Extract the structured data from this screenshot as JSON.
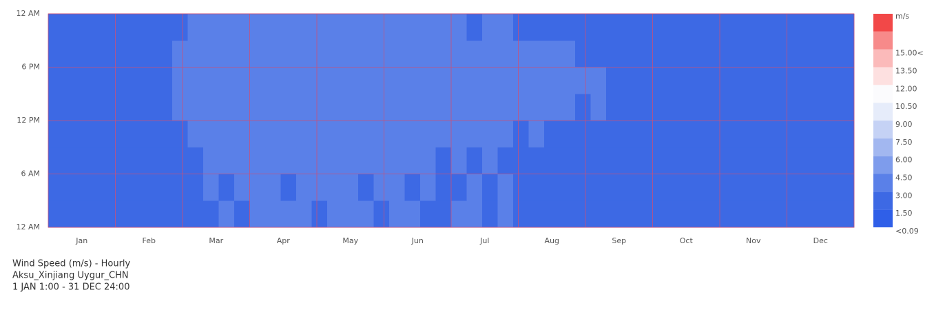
{
  "chart_data": {
    "type": "heatmap",
    "title": "Wind Speed (m/s) - Hourly",
    "subtitle": "Aksu_Xinjiang Uygur_CHN",
    "period": "1 JAN 1:00 - 31 DEC 24:00",
    "categories": [
      "Jan",
      "Feb",
      "Mar",
      "Apr",
      "May",
      "Jun",
      "Jul",
      "Aug",
      "Sep",
      "Oct",
      "Nov",
      "Dec"
    ],
    "ylim": [
      0,
      24
    ],
    "yticks": [
      {
        "value": 0,
        "label": "12 AM"
      },
      {
        "value": 6,
        "label": "6 AM"
      },
      {
        "value": 12,
        "label": "12 PM"
      },
      {
        "value": 18,
        "label": "6 PM"
      },
      {
        "value": 24,
        "label": "12 AM"
      }
    ],
    "grid_color": "#c8507a",
    "color_unit": "m/s",
    "above_color": "#f24848",
    "colorscale": [
      {
        "value": 0.09,
        "label": "<0.09",
        "color": "#2f5fe8"
      },
      {
        "value": 1.5,
        "label": "1.50",
        "color": "#3d69e4"
      },
      {
        "value": 3,
        "label": "3.00",
        "color": "#5a80e8"
      },
      {
        "value": 4.5,
        "label": "4.50",
        "color": "#7e9cec"
      },
      {
        "value": 6,
        "label": "6.00",
        "color": "#a2b7f0"
      },
      {
        "value": 7.5,
        "label": "7.50",
        "color": "#c5d2f5"
      },
      {
        "value": 9,
        "label": "9.00",
        "color": "#e6ecfa"
      },
      {
        "value": 10.5,
        "label": "10.50",
        "color": "#fbfbfd"
      },
      {
        "value": 12,
        "label": "12.00",
        "color": "#fde0e0"
      },
      {
        "value": 13.5,
        "label": "13.50",
        "color": "#fbbaba"
      },
      {
        "value": 15,
        "label": "15.00<",
        "color": "#f78a8a"
      }
    ],
    "z": [
      [
        2.0,
        2.1,
        1.9,
        2.2,
        2.0,
        2.1,
        2.3,
        2.0,
        2.2,
        2.6,
        2.9,
        3.2,
        2.8,
        3.4,
        3.1,
        3.0,
        3.3,
        2.9,
        3.5,
        3.2,
        3.0,
        2.8,
        3.1,
        3.3,
        2.9,
        2.7,
        3.0,
        3.2,
        2.8,
        3.1,
        2.9,
        2.6,
        2.8,
        2.5,
        2.7,
        2.4,
        2.3,
        2.2,
        2.5,
        2.1,
        2.0,
        2.2,
        2.1,
        2.0,
        1.9,
        2.1,
        2.0,
        2.2,
        1.9,
        2.0,
        2.1,
        2.0
      ],
      [
        2.1,
        2.0,
        2.2,
        2.0,
        2.1,
        2.3,
        2.1,
        2.2,
        2.0,
        2.7,
        3.0,
        2.9,
        3.1,
        3.3,
        3.0,
        2.9,
        3.4,
        3.1,
        3.2,
        3.0,
        2.9,
        3.0,
        3.2,
        2.9,
        3.1,
        2.8,
        2.9,
        3.0,
        2.7,
        3.0,
        2.8,
        2.7,
        2.6,
        2.4,
        2.6,
        2.3,
        2.2,
        2.4,
        2.3,
        2.1,
        2.2,
        2.0,
        2.1,
        2.2,
        2.0,
        1.9,
        2.1,
        2.0,
        2.1,
        1.9,
        2.0,
        2.1
      ],
      [
        2.0,
        2.2,
        2.1,
        2.0,
        2.2,
        2.1,
        2.0,
        2.3,
        2.4,
        2.8,
        3.1,
        3.0,
        3.3,
        3.2,
        3.1,
        3.2,
        3.0,
        3.3,
        3.1,
        3.2,
        3.4,
        3.1,
        3.0,
        3.2,
        3.1,
        2.9,
        3.1,
        2.8,
        3.0,
        2.9,
        2.7,
        2.8,
        2.5,
        2.6,
        2.4,
        2.5,
        2.3,
        2.2,
        2.1,
        2.3,
        2.1,
        2.0,
        2.2,
        2.0,
        2.1,
        2.0,
        1.9,
        2.1,
        2.0,
        2.2,
        2.0,
        1.9
      ],
      [
        2.2,
        2.1,
        2.3,
        2.2,
        2.0,
        2.4,
        2.2,
        2.5,
        2.6,
        3.0,
        3.4,
        3.2,
        3.6,
        3.3,
        3.5,
        3.4,
        3.6,
        3.2,
        3.7,
        3.4,
        3.3,
        3.5,
        3.2,
        3.6,
        3.3,
        3.1,
        3.4,
        3.2,
        3.0,
        3.3,
        2.9,
        3.1,
        2.8,
        2.9,
        2.7,
        2.6,
        2.5,
        2.4,
        2.6,
        2.3,
        2.2,
        2.4,
        2.2,
        2.1,
        2.3,
        2.1,
        2.2,
        2.0,
        2.2,
        2.1,
        2.0,
        2.2
      ],
      [
        2.3,
        2.4,
        2.2,
        2.5,
        2.4,
        2.6,
        2.5,
        2.7,
        3.1,
        3.5,
        3.8,
        3.6,
        4.1,
        3.7,
        3.9,
        4.0,
        3.8,
        3.6,
        4.2,
        3.9,
        3.7,
        4.0,
        3.8,
        3.6,
        3.9,
        3.5,
        3.8,
        3.6,
        3.4,
        3.7,
        3.3,
        3.5,
        3.1,
        3.2,
        2.9,
        3.0,
        2.8,
        2.7,
        2.9,
        2.6,
        2.5,
        2.6,
        2.4,
        2.3,
        2.5,
        2.2,
        2.3,
        2.4,
        2.2,
        2.3,
        2.2,
        2.3
      ],
      [
        2.4,
        2.3,
        2.5,
        2.4,
        2.6,
        2.5,
        2.7,
        2.6,
        3.3,
        3.7,
        4.0,
        3.9,
        4.4,
        3.8,
        4.2,
        4.1,
        3.9,
        4.3,
        4.0,
        3.8,
        4.1,
        3.9,
        4.2,
        3.7,
        4.0,
        3.6,
        3.9,
        3.7,
        3.5,
        3.8,
        3.4,
        3.6,
        3.2,
        3.3,
        3.0,
        3.1,
        2.9,
        2.8,
        2.7,
        2.8,
        2.6,
        2.5,
        2.4,
        2.5,
        2.3,
        2.4,
        2.2,
        2.3,
        2.4,
        2.2,
        2.3,
        2.2
      ],
      [
        2.3,
        2.4,
        2.2,
        2.3,
        2.5,
        2.4,
        2.3,
        2.6,
        3.0,
        3.4,
        3.7,
        3.5,
        3.9,
        3.6,
        3.8,
        3.7,
        3.5,
        3.9,
        3.6,
        3.8,
        3.5,
        3.7,
        3.4,
        3.8,
        3.6,
        3.3,
        3.5,
        3.4,
        3.2,
        3.4,
        3.1,
        3.3,
        3.0,
        3.1,
        2.8,
        2.9,
        2.7,
        2.6,
        2.5,
        2.7,
        2.4,
        2.5,
        2.3,
        2.4,
        2.2,
        2.3,
        2.2,
        2.1,
        2.3,
        2.2,
        2.1,
        2.2
      ],
      [
        2.1,
        2.2,
        2.0,
        2.1,
        2.3,
        2.2,
        2.1,
        2.4,
        2.7,
        3.1,
        3.3,
        3.2,
        3.5,
        3.4,
        3.2,
        3.5,
        3.3,
        3.1,
        3.4,
        3.2,
        3.3,
        3.1,
        3.4,
        3.0,
        3.2,
        3.0,
        3.1,
        2.9,
        3.0,
        3.2,
        2.8,
        2.9,
        2.7,
        2.8,
        2.6,
        2.5,
        2.4,
        2.3,
        2.4,
        2.2,
        2.3,
        2.1,
        2.2,
        2.0,
        2.1,
        2.2,
        2.0,
        2.1,
        2.0,
        2.1,
        2.2,
        2.0
      ]
    ]
  }
}
